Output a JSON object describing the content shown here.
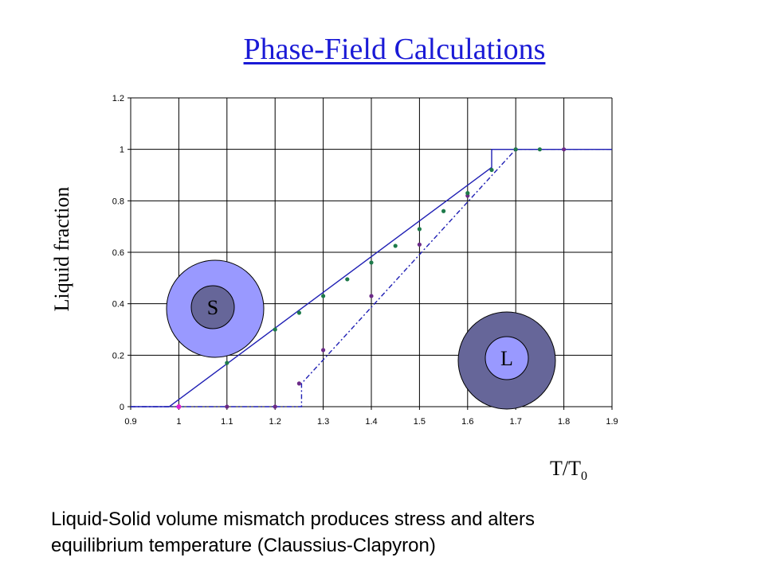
{
  "slide": {
    "title": "Phase-Field Calculations",
    "caption_line1": "Liquid-Solid volume mismatch produces stress and alters",
    "caption_line2": "equilibrium temperature (Claussius-Clapyron)"
  },
  "colors": {
    "title": "#1a1ad6",
    "line": "#1f1fb4",
    "green_markers": "#1e7a4a",
    "purple_markers": "#6b2a88",
    "magenta_marker": "#e020d0",
    "solid_outer": "#9999ff",
    "solid_inner": "#666699",
    "liquid_outer": "#666699",
    "liquid_inner": "#9999ff"
  },
  "insets": {
    "solid_label": "S",
    "liquid_label": "L"
  },
  "chart_data": {
    "type": "line",
    "title": "",
    "xlabel": "T/T",
    "xlabel_sub": "0",
    "ylabel": "Liquid fraction",
    "xlim": [
      0.9,
      1.9
    ],
    "ylim": [
      0,
      1.2
    ],
    "grid": true,
    "x_ticks": [
      "0.9",
      "1",
      "1.1",
      "1.2",
      "1.3",
      "1.4",
      "1.5",
      "1.6",
      "1.7",
      "1.8",
      "1.9"
    ],
    "y_ticks": [
      "0",
      "0.2",
      "0.4",
      "0.6",
      "0.8",
      "1",
      "1.2"
    ],
    "series": [
      {
        "style": "solid",
        "x": [
          0.9,
          0.98,
          1.65,
          1.65,
          1.7,
          1.9
        ],
        "y": [
          0,
          0,
          0.93,
          1.0,
          1.0,
          1.0
        ]
      },
      {
        "style": "dashdot",
        "x": [
          0.9,
          1.25,
          1.255,
          1.255,
          1.7,
          1.9
        ],
        "y": [
          0,
          0,
          0,
          0.09,
          1.0,
          1.0
        ]
      }
    ],
    "markers_green": {
      "x": [
        1.1,
        1.2,
        1.25,
        1.3,
        1.35,
        1.4,
        1.45,
        1.5,
        1.55,
        1.6,
        1.65,
        1.7,
        1.75
      ],
      "y": [
        0.17,
        0.3,
        0.365,
        0.43,
        0.495,
        0.56,
        0.625,
        0.69,
        0.76,
        0.83,
        0.92,
        1.0,
        1.0
      ]
    },
    "markers_purple": {
      "x": [
        1.1,
        1.2,
        1.25,
        1.3,
        1.4,
        1.5,
        1.6,
        1.7,
        1.8
      ],
      "y": [
        0,
        0,
        0.09,
        0.22,
        0.43,
        0.63,
        0.82,
        1.0,
        1.0
      ]
    },
    "markers_magenta": {
      "x": [
        1.0
      ],
      "y": [
        0
      ]
    }
  }
}
